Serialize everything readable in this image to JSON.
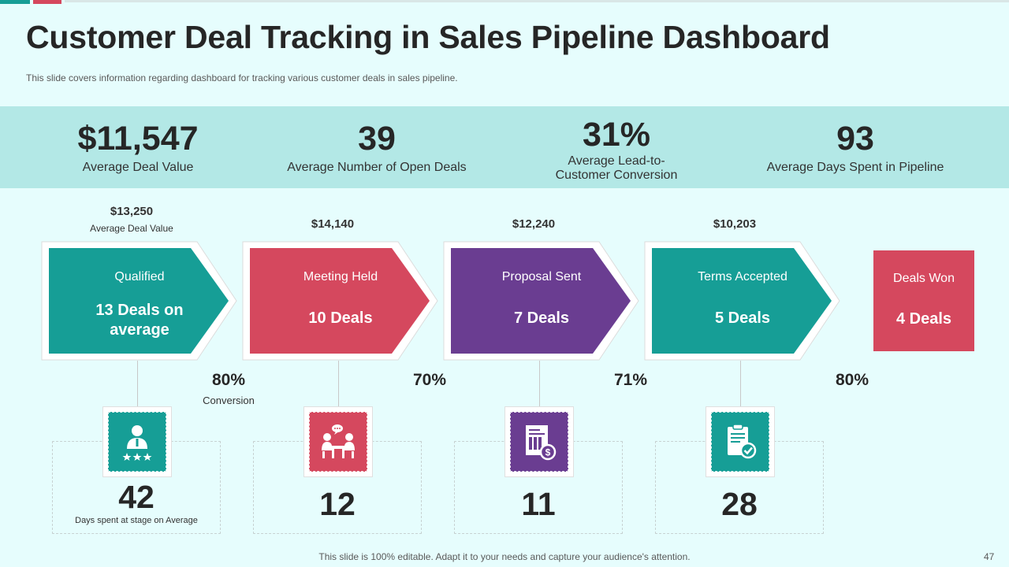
{
  "header": {
    "title": "Customer Deal Tracking in Sales Pipeline Dashboard",
    "subtitle": "This slide covers information regarding dashboard for tracking various  customer deals in sales pipeline."
  },
  "kpis": [
    {
      "value": "$11,547",
      "label": "Average Deal Value"
    },
    {
      "value": "39",
      "label": "Average Number of Open Deals"
    },
    {
      "value": "31%",
      "label": "Average Lead-to-\nCustomer Conversion"
    },
    {
      "value": "93",
      "label": "Average Days Spent in Pipeline"
    }
  ],
  "stages": [
    {
      "avg_value": "$13,250",
      "avg_value_label": "Average  Deal Value",
      "name": "Qualified",
      "deals": "13 Deals on average",
      "days": "42",
      "days_label": "Days spent at stage on Average",
      "color": "#169e96",
      "icon": "businessman-rating-icon"
    },
    {
      "avg_value": "$14,140",
      "name": "Meeting Held",
      "deals": "10 Deals",
      "days": "12",
      "color": "#d5485e",
      "icon": "meeting-table-icon"
    },
    {
      "avg_value": "$12,240",
      "name": "Proposal Sent",
      "deals": "7 Deals",
      "days": "11",
      "color": "#6a3d91",
      "icon": "proposal-document-icon"
    },
    {
      "avg_value": "$10,203",
      "name": "Terms Accepted",
      "deals": "5 Deals",
      "days": "28",
      "color": "#169e96",
      "icon": "approved-document-icon"
    }
  ],
  "deals_won": {
    "name": "Deals Won",
    "deals": "4 Deals",
    "color": "#d5485e"
  },
  "conversions": [
    {
      "value": "80%",
      "label": "Conversion"
    },
    {
      "value": "70%"
    },
    {
      "value": "71%"
    },
    {
      "value": "80%"
    }
  ],
  "footer": {
    "note": "This slide is 100% editable. Adapt it to your needs and capture your audience's attention.",
    "page": "47"
  }
}
